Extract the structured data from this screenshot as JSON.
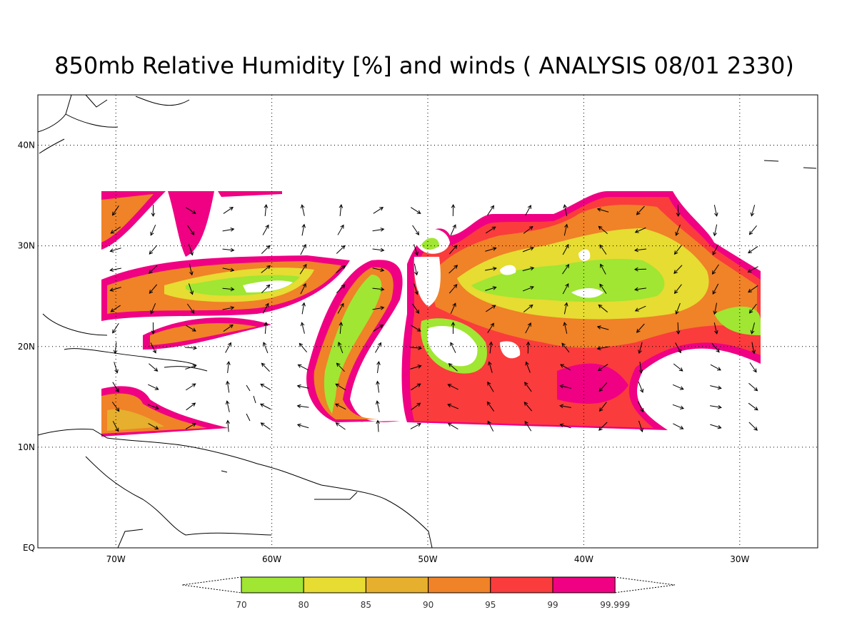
{
  "title": "850mb Relative Humidity [%] and winds ( ANALYSIS 08/01 2330)",
  "map": {
    "xlim": [
      -75,
      -25
    ],
    "ylim": [
      0,
      45
    ],
    "xticks": [
      {
        "value": -70,
        "label": "70W"
      },
      {
        "value": -60,
        "label": "60W"
      },
      {
        "value": -50,
        "label": "50W"
      },
      {
        "value": -40,
        "label": "40W"
      },
      {
        "value": -30,
        "label": "30W"
      }
    ],
    "yticks": [
      {
        "value": 0,
        "label": "EQ"
      },
      {
        "value": 10,
        "label": "10N"
      },
      {
        "value": 20,
        "label": "20N"
      },
      {
        "value": 30,
        "label": "30N"
      },
      {
        "value": 40,
        "label": "40N"
      }
    ],
    "grid": true
  },
  "colorbar": {
    "levels": [
      70,
      80,
      85,
      90,
      95,
      99,
      99.999
    ],
    "colors": [
      "#a0e632",
      "#e6dc32",
      "#e6af2d",
      "#f08228",
      "#fa3c3c",
      "#f00082"
    ]
  }
}
